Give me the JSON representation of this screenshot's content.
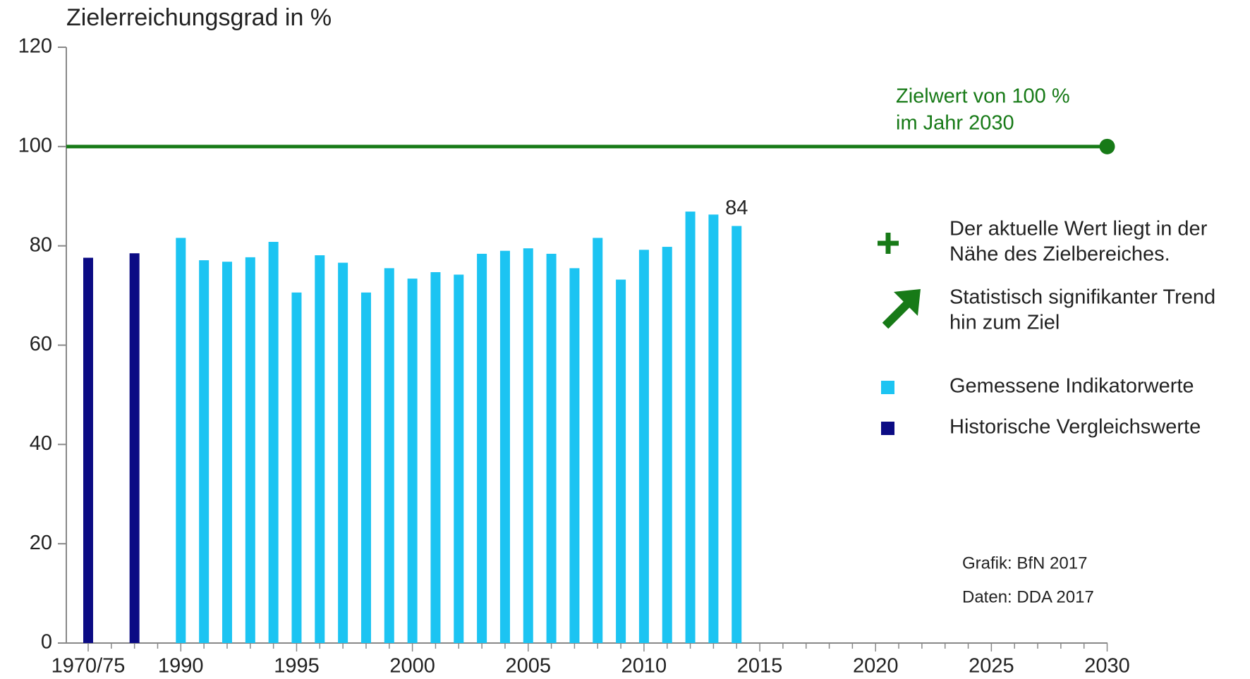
{
  "chart_data": {
    "type": "bar",
    "title": "Zielerreichungsgrad in %",
    "categories": [
      "1970/75",
      null,
      null,
      null,
      "1990",
      null,
      null,
      null,
      null,
      "1995",
      null,
      null,
      null,
      null,
      "2000",
      null,
      null,
      null,
      null,
      "2005",
      null,
      null,
      null,
      null,
      "2010",
      null,
      null,
      null,
      null,
      "2015",
      null,
      null,
      null,
      null,
      "2020",
      null,
      null,
      null,
      null,
      "2025",
      null,
      null,
      null,
      null,
      "2030"
    ],
    "series": [
      {
        "name": "Gemessene Indikatorwerte",
        "color": "#1cc4f2",
        "values": [
          null,
          null,
          null,
          null,
          81.6,
          77.1,
          76.8,
          77.7,
          80.8,
          70.6,
          78.1,
          76.6,
          70.6,
          75.5,
          73.4,
          74.7,
          74.2,
          78.4,
          79.0,
          79.5,
          78.4,
          75.5,
          81.6,
          73.2,
          79.2,
          79.8,
          86.9,
          86.3,
          84,
          null,
          null,
          null,
          null,
          null,
          null,
          null,
          null,
          null,
          null,
          null,
          null,
          null,
          null,
          null,
          null
        ],
        "value_labels": [
          null,
          null,
          null,
          null,
          null,
          null,
          null,
          null,
          null,
          null,
          null,
          null,
          null,
          null,
          null,
          null,
          null,
          null,
          null,
          null,
          null,
          null,
          null,
          null,
          null,
          null,
          null,
          null,
          "84",
          null,
          null,
          null,
          null,
          null,
          null,
          null,
          null,
          null,
          null,
          null,
          null,
          null,
          null,
          null,
          null
        ]
      },
      {
        "name": "Historische Vergleichswerte",
        "color": "#0b0b84",
        "values": [
          77.6,
          null,
          78.5,
          null,
          null,
          null,
          null,
          null,
          null,
          null,
          null,
          null,
          null,
          null,
          null,
          null,
          null,
          null,
          null,
          null,
          null,
          null,
          null,
          null,
          null,
          null,
          null,
          null,
          null,
          null,
          null,
          null,
          null,
          null,
          null,
          null,
          null,
          null,
          null,
          null,
          null,
          null,
          null,
          null,
          null
        ]
      }
    ],
    "ylim": [
      0,
      120
    ],
    "yticks": [
      0,
      20,
      40,
      60,
      80,
      100,
      120
    ],
    "target": {
      "value": 100,
      "color": "#177a17",
      "label": [
        "Zielwert von 100 %",
        "im Jahr 2030"
      ]
    },
    "status_notes": [
      {
        "symbol": "plus",
        "text": [
          "Der aktuelle Wert liegt in der",
          "Nähe des Zielbereiches."
        ]
      },
      {
        "symbol": "arrow",
        "text": [
          "Statistisch signifikanter Trend",
          "hin zum Ziel"
        ]
      }
    ],
    "credits": [
      "Grafik: BfN 2017",
      "Daten: DDA 2017"
    ]
  }
}
